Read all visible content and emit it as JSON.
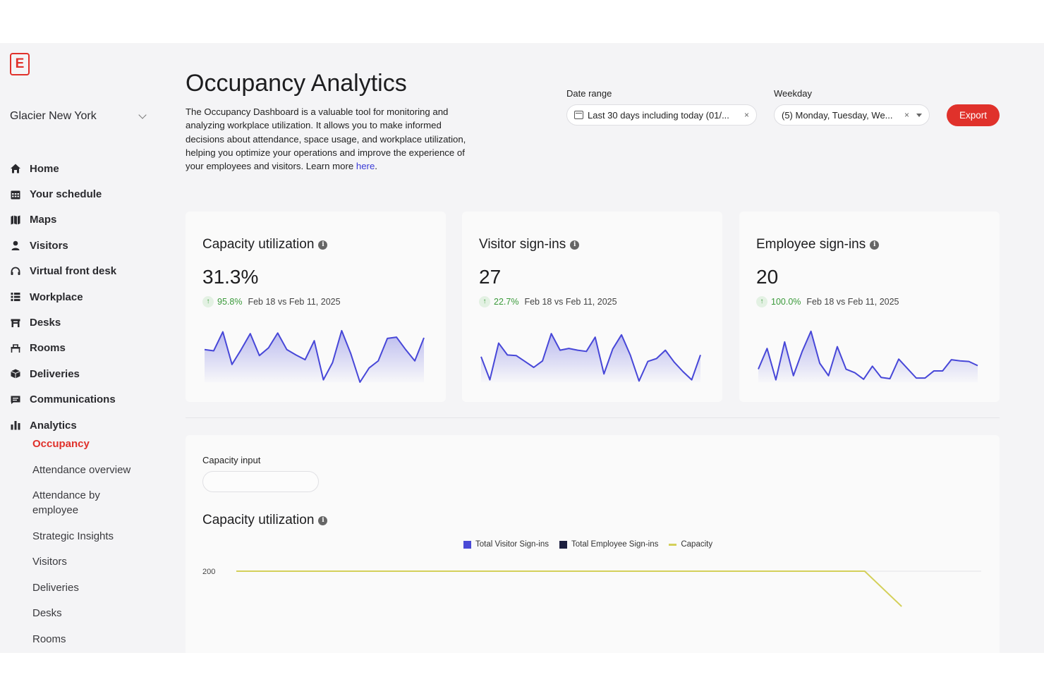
{
  "app": {
    "logo_letter": "E",
    "location": "Glacier New York"
  },
  "sidebar": {
    "items": [
      {
        "label": "Home",
        "icon": "home-icon"
      },
      {
        "label": "Your schedule",
        "icon": "calendar-icon"
      },
      {
        "label": "Maps",
        "icon": "map-icon"
      },
      {
        "label": "Visitors",
        "icon": "person-icon"
      },
      {
        "label": "Virtual front desk",
        "icon": "headset-icon"
      },
      {
        "label": "Workplace",
        "icon": "list-icon"
      },
      {
        "label": "Desks",
        "icon": "desk-icon"
      },
      {
        "label": "Rooms",
        "icon": "room-icon"
      },
      {
        "label": "Deliveries",
        "icon": "package-icon"
      },
      {
        "label": "Communications",
        "icon": "message-icon"
      },
      {
        "label": "Analytics",
        "icon": "bar-chart-icon"
      }
    ],
    "analytics_sub": [
      {
        "label": "Occupancy",
        "active": true
      },
      {
        "label": "Attendance overview"
      },
      {
        "label": "Attendance by employee"
      },
      {
        "label": "Strategic Insights"
      },
      {
        "label": "Visitors"
      },
      {
        "label": "Deliveries"
      },
      {
        "label": "Desks"
      },
      {
        "label": "Rooms"
      }
    ]
  },
  "header": {
    "title": "Occupancy Analytics",
    "description": "The Occupancy Dashboard is a valuable tool for monitoring and analyzing workplace utilization. It allows you to make informed decisions about attendance, space usage, and workplace utilization, helping you optimize your operations and improve the experience of your employees and visitors.  Learn more ",
    "learn_more_link": "here",
    "date_range_label": "Date range",
    "date_range_value": "Last 30 days including today (01/...",
    "weekday_label": "Weekday",
    "weekday_value": "(5) Monday, Tuesday, We...",
    "clear_glyph": "×",
    "export_label": "Export"
  },
  "cards": [
    {
      "title": "Capacity utilization",
      "value": "31.3%",
      "delta_pct": "95.8%",
      "compare": "Feb 18 vs Feb 11, 2025",
      "spark": [
        55,
        53,
        85,
        30,
        55,
        82,
        45,
        58,
        83,
        55,
        46,
        38,
        70,
        4,
        33,
        87,
        48,
        0,
        24,
        36,
        74,
        76,
        55,
        36,
        75
      ]
    },
    {
      "title": "Visitor sign-ins",
      "value": "27",
      "delta_pct": "22.7%",
      "compare": "Feb 18 vs Feb 11, 2025",
      "spark": [
        43,
        4,
        66,
        46,
        45,
        35,
        25,
        36,
        82,
        54,
        57,
        54,
        52,
        76,
        14,
        56,
        80,
        46,
        2,
        35,
        40,
        54,
        34,
        18,
        4,
        46
      ]
    },
    {
      "title": "Employee sign-ins",
      "value": "20",
      "delta_pct": "100.0%",
      "compare": "Feb 18 vs Feb 11, 2025",
      "spark": [
        22,
        57,
        4,
        68,
        11,
        52,
        86,
        32,
        11,
        60,
        22,
        16,
        5,
        27,
        8,
        6,
        39,
        23,
        7,
        7,
        19,
        19,
        38,
        36,
        35,
        28
      ]
    }
  ],
  "capacity_panel": {
    "input_label": "Capacity input",
    "input_value": "",
    "chart_title": "Capacity utilization"
  },
  "colors": {
    "accent": "#e0312b",
    "spark_line": "#4747d8",
    "positive": "#3a9a3a",
    "visitor_series": "#4a4ad6",
    "employee_series": "#1c1f3f",
    "capacity_series": "#d4d05a"
  },
  "chart_data": {
    "type": "line",
    "series": [
      {
        "name": "Total Visitor Sign-ins",
        "values": []
      },
      {
        "name": "Total Employee Sign-ins",
        "values": []
      },
      {
        "name": "Capacity",
        "values": [
          200,
          200,
          200,
          200,
          200,
          200,
          200,
          200,
          200,
          200,
          200,
          200,
          200,
          200,
          200,
          200,
          200,
          200,
          150
        ]
      }
    ],
    "yticks": [
      200
    ],
    "legend": "top-center",
    "grid": true
  }
}
